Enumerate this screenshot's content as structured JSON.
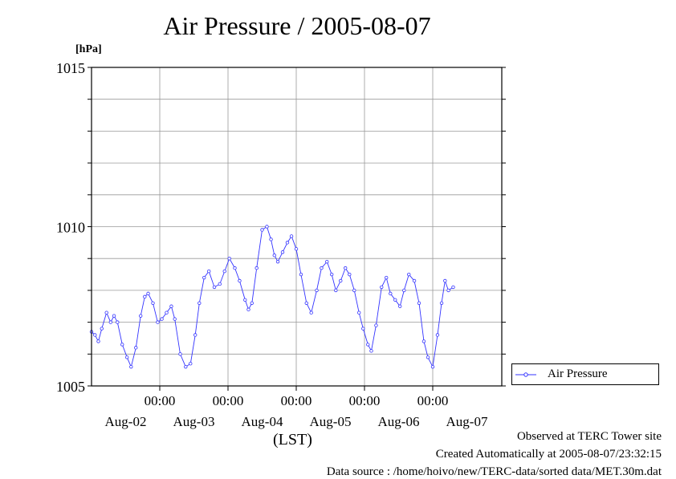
{
  "chart_data": {
    "type": "line",
    "title": "Air Pressure / 2005-08-07",
    "ylabel": "[hPa]",
    "xlabel": "(LST)",
    "ylim": [
      1005,
      1015
    ],
    "yticks": [
      1005,
      1010,
      1015
    ],
    "xlim": [
      0,
      6
    ],
    "x_time_ticks": [
      "00:00",
      "00:00",
      "00:00",
      "00:00",
      "00:00"
    ],
    "x_date_ticks": [
      "Aug-02",
      "Aug-03",
      "Aug-04",
      "Aug-05",
      "Aug-06",
      "Aug-07"
    ],
    "grid": true,
    "legend_position": "bottom-right",
    "series": [
      {
        "name": "Air Pressure",
        "color": "#3333ff",
        "points": [
          [
            0.0,
            1006.7
          ],
          [
            0.05,
            1006.6
          ],
          [
            0.1,
            1006.4
          ],
          [
            0.15,
            1006.8
          ],
          [
            0.22,
            1007.3
          ],
          [
            0.28,
            1007.0
          ],
          [
            0.33,
            1007.2
          ],
          [
            0.38,
            1007.0
          ],
          [
            0.45,
            1006.3
          ],
          [
            0.52,
            1005.9
          ],
          [
            0.58,
            1005.6
          ],
          [
            0.65,
            1006.2
          ],
          [
            0.72,
            1007.2
          ],
          [
            0.78,
            1007.8
          ],
          [
            0.83,
            1007.9
          ],
          [
            0.9,
            1007.6
          ],
          [
            0.97,
            1007.0
          ],
          [
            1.03,
            1007.1
          ],
          [
            1.1,
            1007.3
          ],
          [
            1.17,
            1007.5
          ],
          [
            1.22,
            1007.1
          ],
          [
            1.3,
            1006.0
          ],
          [
            1.38,
            1005.6
          ],
          [
            1.45,
            1005.7
          ],
          [
            1.52,
            1006.6
          ],
          [
            1.58,
            1007.6
          ],
          [
            1.65,
            1008.4
          ],
          [
            1.72,
            1008.6
          ],
          [
            1.8,
            1008.1
          ],
          [
            1.88,
            1008.2
          ],
          [
            1.95,
            1008.6
          ],
          [
            2.02,
            1009.0
          ],
          [
            2.1,
            1008.7
          ],
          [
            2.17,
            1008.3
          ],
          [
            2.25,
            1007.7
          ],
          [
            2.3,
            1007.4
          ],
          [
            2.35,
            1007.6
          ],
          [
            2.42,
            1008.7
          ],
          [
            2.5,
            1009.9
          ],
          [
            2.57,
            1010.0
          ],
          [
            2.63,
            1009.6
          ],
          [
            2.68,
            1009.1
          ],
          [
            2.73,
            1008.9
          ],
          [
            2.8,
            1009.2
          ],
          [
            2.87,
            1009.5
          ],
          [
            2.93,
            1009.7
          ],
          [
            3.0,
            1009.3
          ],
          [
            3.07,
            1008.5
          ],
          [
            3.15,
            1007.6
          ],
          [
            3.22,
            1007.3
          ],
          [
            3.3,
            1008.0
          ],
          [
            3.37,
            1008.7
          ],
          [
            3.45,
            1008.9
          ],
          [
            3.52,
            1008.5
          ],
          [
            3.58,
            1008.0
          ],
          [
            3.65,
            1008.3
          ],
          [
            3.72,
            1008.7
          ],
          [
            3.78,
            1008.5
          ],
          [
            3.85,
            1008.0
          ],
          [
            3.92,
            1007.3
          ],
          [
            3.98,
            1006.8
          ],
          [
            4.05,
            1006.3
          ],
          [
            4.1,
            1006.1
          ],
          [
            4.17,
            1006.9
          ],
          [
            4.25,
            1008.1
          ],
          [
            4.32,
            1008.4
          ],
          [
            4.38,
            1007.9
          ],
          [
            4.45,
            1007.7
          ],
          [
            4.52,
            1007.5
          ],
          [
            4.58,
            1008.0
          ],
          [
            4.65,
            1008.5
          ],
          [
            4.73,
            1008.3
          ],
          [
            4.8,
            1007.6
          ],
          [
            4.87,
            1006.4
          ],
          [
            4.93,
            1005.9
          ],
          [
            5.0,
            1005.6
          ],
          [
            5.07,
            1006.6
          ],
          [
            5.13,
            1007.6
          ],
          [
            5.18,
            1008.3
          ],
          [
            5.23,
            1008.0
          ],
          [
            5.3,
            1008.1
          ]
        ]
      }
    ]
  },
  "legend": {
    "label": "Air Pressure"
  },
  "footer": {
    "line1": "Observed at TERC Tower site",
    "line2": "Created Automatically at 2005-08-07/23:32:15",
    "line3": "Data source : /home/hoivo/new/TERC-data/sorted  data/MET.30m.dat"
  }
}
